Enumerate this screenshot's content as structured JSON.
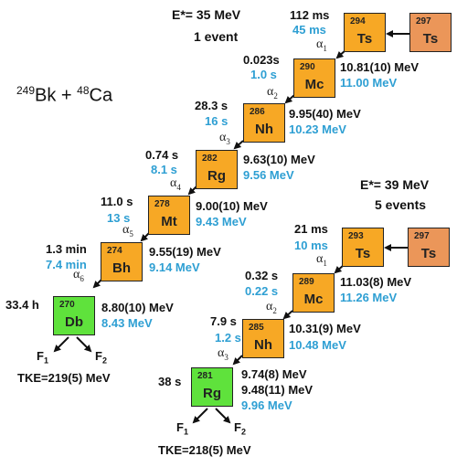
{
  "reaction": {
    "target_mass": "249",
    "target_symbol": "Bk",
    "plus": " + ",
    "projectile_mass": "48",
    "projectile_symbol": "Ca"
  },
  "chain_a": {
    "energy_label": "E*= 35 MeV",
    "events_label": "1 event",
    "nuclides": [
      {
        "mass": "297",
        "symbol": "Ts"
      },
      {
        "mass": "294",
        "symbol": "Ts"
      },
      {
        "mass": "290",
        "symbol": "Mc"
      },
      {
        "mass": "286",
        "symbol": "Nh"
      },
      {
        "mass": "282",
        "symbol": "Rg"
      },
      {
        "mass": "278",
        "symbol": "Mt"
      },
      {
        "mass": "274",
        "symbol": "Bh"
      },
      {
        "mass": "270",
        "symbol": "Db"
      }
    ],
    "lifetimes_exp": [
      "112 ms",
      "0.023s",
      "28.3 s",
      "0.74 s",
      "11.0 s",
      "1.3 min",
      "33.4 h"
    ],
    "lifetimes_calc": [
      "45 ms",
      "1.0 s",
      "16 s",
      "8.1 s",
      "13 s",
      "7.4 min"
    ],
    "energies_exp": [
      "10.81(10) MeV",
      "9.95(40) MeV",
      "9.63(10) MeV",
      "9.00(10) MeV",
      "9.55(19) MeV",
      "8.80(10) MeV"
    ],
    "energies_calc": [
      "11.00 MeV",
      "10.23 MeV",
      "9.56 MeV",
      "9.43 MeV",
      "9.14 MeV",
      "8.43 MeV"
    ],
    "alpha_symbol": "α",
    "alpha_indices": [
      "1",
      "2",
      "3",
      "4",
      "5",
      "6"
    ],
    "fragments": {
      "f": "F",
      "f1": "1",
      "f2": "2"
    },
    "tke": "TKE=219(5) MeV"
  },
  "chain_b": {
    "energy_label": "E*= 39 MeV",
    "events_label": "5 events",
    "nuclides": [
      {
        "mass": "297",
        "symbol": "Ts"
      },
      {
        "mass": "293",
        "symbol": "Ts"
      },
      {
        "mass": "289",
        "symbol": "Mc"
      },
      {
        "mass": "285",
        "symbol": "Nh"
      },
      {
        "mass": "281",
        "symbol": "Rg"
      }
    ],
    "lifetimes_exp": [
      "21 ms",
      "0.32 s",
      "7.9 s",
      "38 s"
    ],
    "lifetimes_calc": [
      "10 ms",
      "0.22 s",
      "1.2 s"
    ],
    "energies_exp": [
      "11.03(8) MeV",
      "10.31(9) MeV",
      "9.74(8) MeV",
      "9.48(11) MeV"
    ],
    "energies_calc": [
      "11.26 MeV",
      "10.48 MeV",
      "9.96 MeV"
    ],
    "alpha_symbol": "α",
    "alpha_indices": [
      "1",
      "2",
      "3"
    ],
    "fragments": {
      "f": "F",
      "f1": "1",
      "f2": "2"
    },
    "tke": "TKE=218(5) MeV"
  },
  "colors": {
    "evaporation_residue": "#F7A825",
    "compound": "#EB9659",
    "fission_end": "#5FE23C",
    "calc_text": "#2E9FD3"
  }
}
